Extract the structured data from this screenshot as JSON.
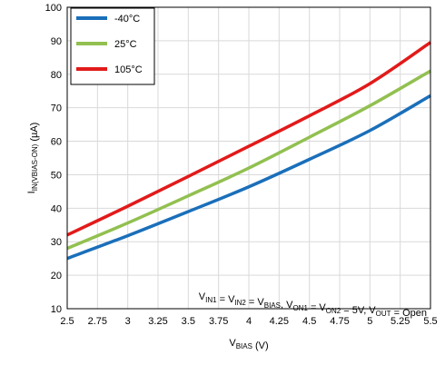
{
  "chart_data": {
    "type": "line",
    "xlabel": {
      "main": "V",
      "sub": "BIAS",
      "unit": " (V)"
    },
    "ylabel": {
      "main": "I",
      "sub": "IN(VBIAS-ON)",
      "unit": " (µA)"
    },
    "xlim": [
      2.5,
      5.5
    ],
    "ylim": [
      10,
      100
    ],
    "x_ticks": [
      "2.5",
      "2.75",
      "3",
      "3.25",
      "3.5",
      "3.75",
      "4",
      "4.25",
      "4.5",
      "4.75",
      "5",
      "5.25",
      "5.5"
    ],
    "y_ticks": [
      "10",
      "20",
      "30",
      "40",
      "50",
      "60",
      "70",
      "80",
      "90",
      "100"
    ],
    "grid": true,
    "legend_position": "top-left",
    "series": [
      {
        "name": "-40°C",
        "color": "#1a6fba",
        "x": [
          2.5,
          3.0,
          3.5,
          4.0,
          4.5,
          5.0,
          5.5
        ],
        "y": [
          25.0,
          31.8,
          39.0,
          46.4,
          54.6,
          63.2,
          73.6
        ]
      },
      {
        "name": "25°C",
        "color": "#92c050",
        "x": [
          2.5,
          3.0,
          3.5,
          4.0,
          4.5,
          5.0,
          5.5
        ],
        "y": [
          28.0,
          35.6,
          43.7,
          52.0,
          61.2,
          70.6,
          81.0
        ]
      },
      {
        "name": "105°C",
        "color": "#e21a1a",
        "x": [
          2.5,
          3.0,
          3.5,
          4.0,
          4.5,
          5.0,
          5.5
        ],
        "y": [
          32.0,
          40.6,
          49.5,
          58.5,
          67.6,
          77.2,
          89.5
        ]
      }
    ],
    "annotation": [
      {
        "t": "V"
      },
      {
        "t": "IN1",
        "sub": true
      },
      {
        "t": " = V"
      },
      {
        "t": "IN2",
        "sub": true
      },
      {
        "t": " = V"
      },
      {
        "t": "BIAS",
        "sub": true
      },
      {
        "t": ", V"
      },
      {
        "t": "ON1",
        "sub": true
      },
      {
        "t": " = V"
      },
      {
        "t": "ON2",
        "sub": true
      },
      {
        "t": " = 5V, V"
      },
      {
        "t": "OUT",
        "sub": true
      },
      {
        "t": " = Open"
      }
    ]
  }
}
